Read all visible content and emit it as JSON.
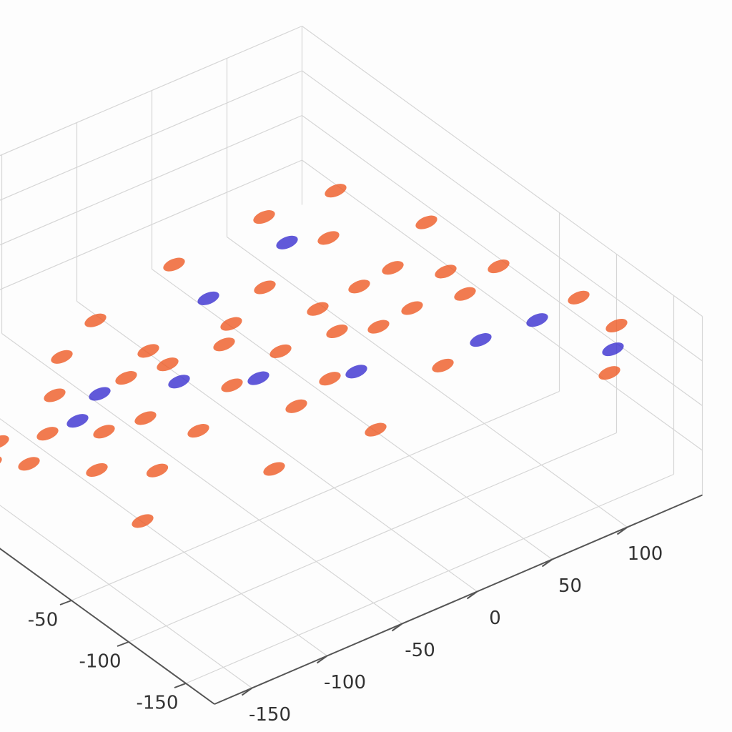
{
  "chart_data": {
    "type": "scatter3d",
    "xlim": [
      -175,
      150
    ],
    "ylim": [
      -175,
      175
    ],
    "zlim": [
      0,
      100
    ],
    "xticks": [
      -150,
      -100,
      -50,
      0,
      50,
      100
    ],
    "yticks": [
      -150,
      -100,
      -50
    ],
    "grid": true,
    "series": [
      {
        "color": "#ee5a24",
        "x": [
          -160,
          -150,
          -140,
          -130,
          -120,
          -110,
          -100,
          -95,
          -90,
          -80,
          -70,
          -60,
          -50,
          -40,
          -30,
          -20,
          -10,
          0,
          10,
          20,
          30,
          40,
          50,
          60,
          70,
          80,
          90,
          100,
          110,
          120,
          130,
          140,
          -60,
          0,
          60,
          100,
          -120,
          -40,
          20,
          80,
          150,
          140,
          130
        ],
        "y": [
          40,
          20,
          60,
          30,
          0,
          50,
          20,
          -20,
          70,
          10,
          40,
          -10,
          30,
          60,
          0,
          20,
          -30,
          40,
          10,
          -20,
          50,
          0,
          30,
          -10,
          20,
          60,
          0,
          30,
          -20,
          10,
          40,
          -10,
          80,
          90,
          90,
          80,
          -40,
          -50,
          -60,
          -40,
          -100,
          -80,
          -120
        ],
        "z": [
          30,
          35,
          25,
          40,
          30,
          45,
          35,
          30,
          50,
          40,
          45,
          35,
          50,
          40,
          45,
          55,
          40,
          50,
          45,
          40,
          55,
          50,
          45,
          50,
          55,
          60,
          45,
          50,
          55,
          50,
          60,
          55,
          55,
          60,
          65,
          70,
          20,
          25,
          30,
          35,
          60,
          70,
          50
        ]
      },
      {
        "color": "#3a2fd0",
        "x": [
          -110,
          -50,
          -20,
          30,
          90,
          120,
          60,
          0,
          140,
          -80
        ],
        "y": [
          30,
          20,
          -10,
          -30,
          -60,
          -70,
          70,
          60,
          -110,
          50
        ],
        "z": [
          40,
          45,
          50,
          45,
          55,
          60,
          60,
          55,
          55,
          35
        ]
      }
    ]
  }
}
